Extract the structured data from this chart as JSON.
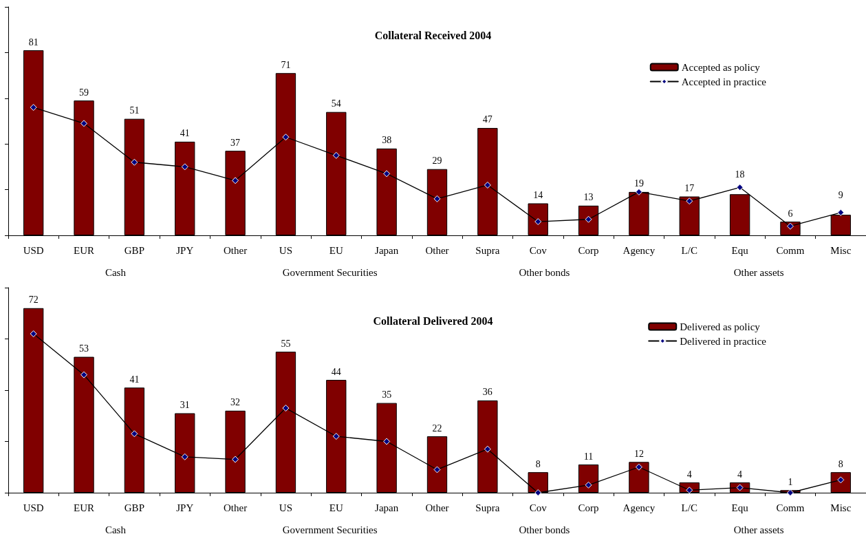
{
  "chart_data": [
    {
      "type": "bar",
      "title": "Collateral Received 2004",
      "categories": [
        "USD",
        "EUR",
        "GBP",
        "JPY",
        "Other",
        "US",
        "EU",
        "Japan",
        "Other",
        "Supra",
        "Cov",
        "Corp",
        "Agency",
        "L/C",
        "Equ",
        "Comm",
        "Misc"
      ],
      "series": [
        {
          "name": "Accepted as policy",
          "color": "#800000",
          "values": [
            81,
            59,
            51,
            41,
            37,
            71,
            54,
            38,
            29,
            47,
            14,
            13,
            19,
            17,
            18,
            6,
            9
          ],
          "value_labels": [
            "81",
            "59",
            "51",
            "41",
            "37",
            "71",
            "54",
            "38",
            "29",
            "47",
            "14",
            "13",
            "19",
            "17",
            "18",
            "6",
            "9"
          ]
        },
        {
          "name": "Accepted in practice",
          "type": "line",
          "color": "#000080",
          "values": [
            56,
            49,
            32,
            30,
            24,
            43,
            35,
            27,
            16,
            22,
            6,
            7,
            19,
            15,
            21,
            4,
            10
          ]
        }
      ],
      "ylim": [
        0,
        100
      ],
      "yticks": [
        0,
        20,
        40,
        60,
        80,
        100
      ],
      "tick_labels": "x",
      "grid": false,
      "legend": "top right",
      "marker": "diamond",
      "line_style": "solid",
      "annotations": [
        "Cash",
        "Government Securities",
        "Other bonds",
        "Other assets"
      ]
    },
    {
      "type": "bar",
      "title": "Collateral Delivered 2004",
      "categories": [
        "USD",
        "EUR",
        "GBP",
        "JPY",
        "Other",
        "US",
        "EU",
        "Japan",
        "Other",
        "Supra",
        "Cov",
        "Corp",
        "Agency",
        "L/C",
        "Equ",
        "Comm",
        "Misc"
      ],
      "series": [
        {
          "name": "Delivered as policy",
          "color": "#800000",
          "values": [
            72,
            53,
            41,
            31,
            32,
            55,
            44,
            35,
            22,
            36,
            8,
            11,
            12,
            4,
            4,
            1,
            8
          ],
          "value_labels": [
            "72",
            "53",
            "41",
            "31",
            "32",
            "55",
            "44",
            "35",
            "22",
            "36",
            "8",
            "11",
            "12",
            "4",
            "4",
            "1",
            "8"
          ]
        },
        {
          "name": "Delivered in practice",
          "type": "line",
          "color": "#000080",
          "values": [
            62,
            46,
            23,
            14,
            13,
            33,
            22,
            20,
            9,
            17,
            0,
            3,
            10,
            1,
            2,
            0,
            5
          ]
        }
      ],
      "ylim": [
        0,
        80
      ],
      "yticks": [
        0,
        20,
        40,
        60,
        80
      ],
      "tick_labels": "x",
      "grid": false,
      "legend": "top right",
      "marker": "diamond",
      "line_style": "solid",
      "annotations": [
        "Cash",
        "Government Securities",
        "Other bonds",
        "Other assets"
      ]
    }
  ]
}
